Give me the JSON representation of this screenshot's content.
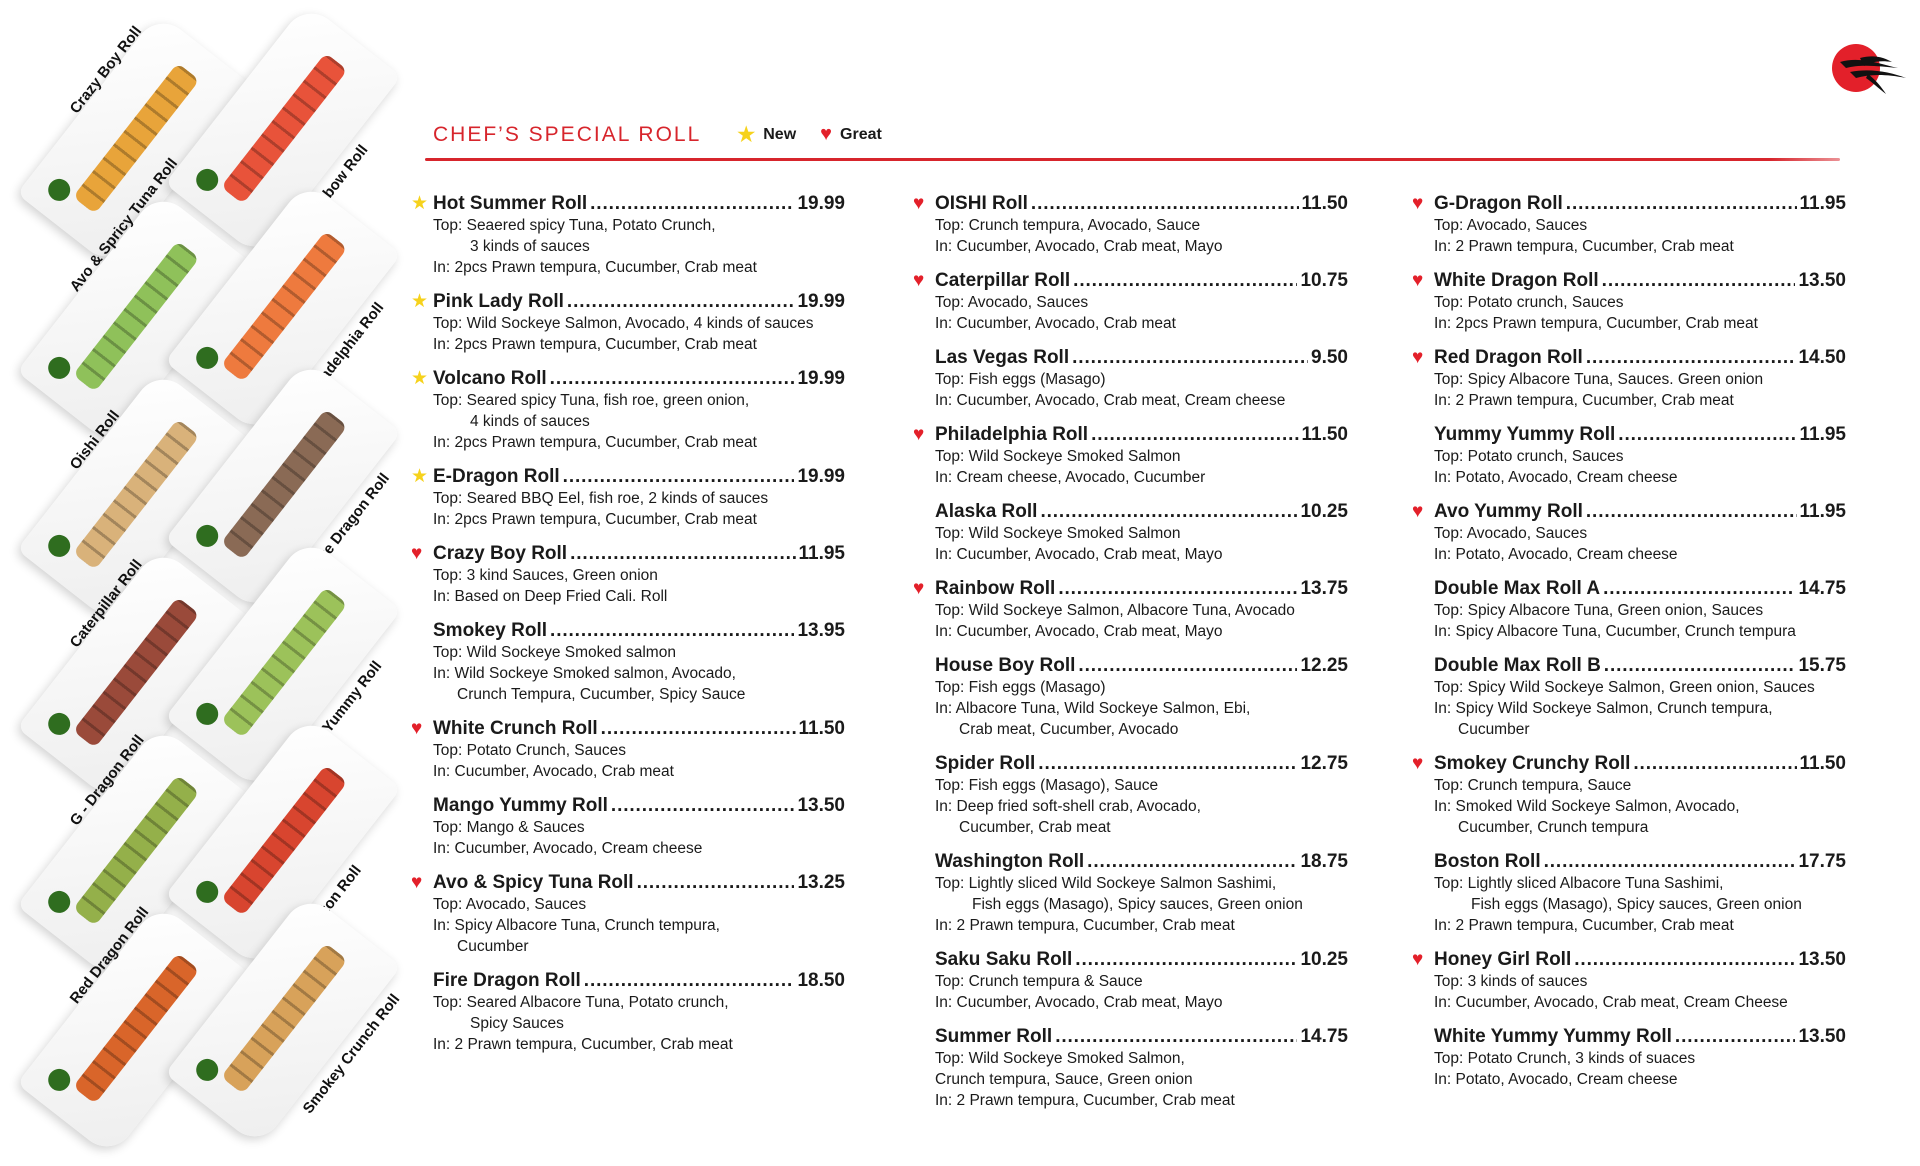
{
  "header": {
    "title": "CHEF’S SPECIAL ROLL",
    "legend": [
      {
        "icon": "star-icon",
        "label": "New"
      },
      {
        "icon": "heart-icon",
        "label": "Great"
      }
    ]
  },
  "colors": {
    "accent": "#d7252c",
    "star": "#f6d21c",
    "heart": "#e3202a"
  },
  "photos": [
    {
      "label": "Crazy Boy Roll",
      "color": "#e8a43a"
    },
    {
      "label": "Rainbow Roll",
      "color": "#e8533a"
    },
    {
      "label": "Avo & Spricy Tuna Roll",
      "color": "#8fc15a"
    },
    {
      "label": "Philadelphia Roll",
      "color": "#ee7a3e"
    },
    {
      "label": "Oishi Roll",
      "color": "#d9b27a"
    },
    {
      "label": "White Dragon Roll",
      "color": "#8a6a55"
    },
    {
      "label": "Caterpillar Roll",
      "color": "#9a4a3a"
    },
    {
      "label": "Avo Yummy Roll",
      "color": "#9cc25a"
    },
    {
      "label": "G - Dragon Roll",
      "color": "#94b04a"
    },
    {
      "label": "Boston Roll",
      "color": "#d8452f"
    },
    {
      "label": "Red Dragon Roll",
      "color": "#d9652a"
    },
    {
      "label": "Smokey Crunch Roll",
      "color": "#d8a25a"
    }
  ],
  "columns": [
    [
      {
        "mark": "star",
        "name": "Hot Summer Roll",
        "price": "19.99",
        "lines": [
          {
            "t": "Top: Seaered spicy Tuna, Potato Crunch,",
            "i": 0
          },
          {
            "t": "3 kinds of sauces",
            "i": 2
          },
          {
            "t": "In: 2pcs Prawn tempura, Cucumber, Crab meat",
            "i": 0
          }
        ]
      },
      {
        "mark": "star",
        "name": "Pink Lady Roll",
        "price": "19.99",
        "lines": [
          {
            "t": "Top: Wild Sockeye Salmon, Avocado, 4 kinds of sauces",
            "i": 0
          },
          {
            "t": "In: 2pcs Prawn tempura, Cucumber, Crab meat",
            "i": 0
          }
        ]
      },
      {
        "mark": "star",
        "name": "Volcano Roll",
        "price": "19.99",
        "lines": [
          {
            "t": "Top: Seared spicy Tuna, fish roe, green onion,",
            "i": 0
          },
          {
            "t": "4 kinds of sauces",
            "i": 2
          },
          {
            "t": "In: 2pcs Prawn tempura, Cucumber, Crab meat",
            "i": 0
          }
        ]
      },
      {
        "mark": "star",
        "name": "E-Dragon Roll",
        "price": "19.99",
        "lines": [
          {
            "t": "Top: Seared BBQ Eel, fish roe, 2 kinds of sauces",
            "i": 0
          },
          {
            "t": "In:  2pcs Prawn tempura, Cucumber, Crab meat",
            "i": 0
          }
        ]
      },
      {
        "mark": "heart",
        "name": "Crazy Boy Roll",
        "price": "11.95",
        "lines": [
          {
            "t": "Top: 3 kind Sauces, Green onion",
            "i": 0
          },
          {
            "t": "In: Based on Deep Fried Cali. Roll",
            "i": 0
          }
        ]
      },
      {
        "mark": "",
        "name": "Smokey Roll",
        "price": "13.95",
        "lines": [
          {
            "t": "Top: Wild Sockeye Smoked salmon",
            "i": 0
          },
          {
            "t": "In: Wild Sockeye Smoked salmon, Avocado,",
            "i": 0
          },
          {
            "t": "Crunch Tempura, Cucumber, Spicy Sauce",
            "i": 1
          }
        ]
      },
      {
        "mark": "heart",
        "name": "White Crunch Roll",
        "price": "11.50",
        "lines": [
          {
            "t": "Top: Potato Crunch, Sauces",
            "i": 0
          },
          {
            "t": "In: Cucumber, Avocado, Crab meat",
            "i": 0
          }
        ]
      },
      {
        "mark": "",
        "name": "Mango Yummy Roll",
        "price": "13.50",
        "lines": [
          {
            "t": "Top: Mango & Sauces",
            "i": 0
          },
          {
            "t": "In: Cucumber, Avocado, Cream cheese",
            "i": 0
          }
        ]
      },
      {
        "mark": "heart",
        "name": "Avo & Spicy Tuna Roll",
        "price": "13.25",
        "lines": [
          {
            "t": "Top: Avocado, Sauces",
            "i": 0
          },
          {
            "t": "In: Spicy Albacore Tuna, Crunch tempura,",
            "i": 0
          },
          {
            "t": "Cucumber",
            "i": 1
          }
        ]
      },
      {
        "mark": "",
        "name": "Fire Dragon Roll",
        "price": "18.50",
        "lines": [
          {
            "t": "Top: Seared Albacore Tuna, Potato crunch,",
            "i": 0
          },
          {
            "t": "Spicy Sauces",
            "i": 2
          },
          {
            "t": "In: 2 Prawn tempura, Cucumber, Crab meat",
            "i": 0
          }
        ]
      }
    ],
    [
      {
        "mark": "heart",
        "name": "OISHI Roll",
        "price": "11.50",
        "lines": [
          {
            "t": "Top: Crunch tempura, Avocado, Sauce",
            "i": 0
          },
          {
            "t": "In: Cucumber, Avocado, Crab meat, Mayo",
            "i": 0
          }
        ]
      },
      {
        "mark": "heart",
        "name": "Caterpillar Roll",
        "price": "10.75",
        "lines": [
          {
            "t": "Top: Avocado, Sauces",
            "i": 0
          },
          {
            "t": "In: Cucumber, Avocado, Crab meat",
            "i": 0
          }
        ]
      },
      {
        "mark": "",
        "name": "Las Vegas Roll",
        "price": "9.50",
        "lines": [
          {
            "t": "Top: Fish eggs (Masago)",
            "i": 0
          },
          {
            "t": "In: Cucumber, Avocado, Crab meat, Cream cheese",
            "i": 0
          }
        ]
      },
      {
        "mark": "heart",
        "name": "Philadelphia Roll",
        "price": "11.50",
        "lines": [
          {
            "t": "Top: Wild Sockeye Smoked Salmon",
            "i": 0
          },
          {
            "t": "In: Cream cheese, Avocado, Cucumber",
            "i": 0
          }
        ]
      },
      {
        "mark": "",
        "name": "Alaska Roll",
        "price": "10.25",
        "lines": [
          {
            "t": "Top: Wild Sockeye Smoked Salmon",
            "i": 0
          },
          {
            "t": "In: Cucumber, Avocado, Crab meat, Mayo",
            "i": 0
          }
        ]
      },
      {
        "mark": "heart",
        "name": "Rainbow Roll",
        "price": "13.75",
        "lines": [
          {
            "t": "Top: Wild Sockeye Salmon, Albacore Tuna, Avocado",
            "i": 0
          },
          {
            "t": "In: Cucumber, Avocado, Crab meat, Mayo",
            "i": 0
          }
        ]
      },
      {
        "mark": "",
        "name": "House Boy Roll",
        "price": "12.25",
        "lines": [
          {
            "t": "Top: Fish eggs (Masago)",
            "i": 0
          },
          {
            "t": "In: Albacore Tuna, Wild Sockeye Salmon, Ebi,",
            "i": 0
          },
          {
            "t": "Crab meat, Cucumber, Avocado",
            "i": 1
          }
        ]
      },
      {
        "mark": "",
        "name": "Spider Roll",
        "price": "12.75",
        "lines": [
          {
            "t": "Top: Fish eggs (Masago), Sauce",
            "i": 0
          },
          {
            "t": "In: Deep fried soft-shell crab, Avocado,",
            "i": 0
          },
          {
            "t": "Cucumber, Crab meat",
            "i": 1
          }
        ]
      },
      {
        "mark": "",
        "name": "Washington Roll",
        "price": "18.75",
        "lines": [
          {
            "t": "Top: Lightly sliced Wild Sockeye Salmon Sashimi,",
            "i": 0
          },
          {
            "t": "Fish eggs (Masago), Spicy sauces, Green onion",
            "i": 2
          },
          {
            "t": "In: 2 Prawn tempura, Cucumber, Crab meat",
            "i": 0
          }
        ]
      },
      {
        "mark": "",
        "name": "Saku Saku Roll",
        "price": "10.25",
        "lines": [
          {
            "t": "Top: Crunch tempura & Sauce",
            "i": 0
          },
          {
            "t": "In: Cucumber, Avocado, Crab meat, Mayo",
            "i": 0
          }
        ]
      },
      {
        "mark": "",
        "name": "Summer Roll",
        "price": "14.75",
        "lines": [
          {
            "t": "Top: Wild Sockeye Smoked Salmon,",
            "i": 0
          },
          {
            "t": "Crunch tempura, Sauce, Green onion",
            "i": 0
          },
          {
            "t": "In: 2 Prawn tempura, Cucumber, Crab meat",
            "i": 0
          }
        ]
      }
    ],
    [
      {
        "mark": "heart",
        "name": "G-Dragon Roll",
        "price": "11.95",
        "lines": [
          {
            "t": "Top: Avocado, Sauces",
            "i": 0
          },
          {
            "t": "In: 2 Prawn tempura, Cucumber, Crab meat",
            "i": 0
          }
        ]
      },
      {
        "mark": "heart",
        "name": "White Dragon Roll",
        "price": "13.50",
        "lines": [
          {
            "t": "Top: Potato crunch, Sauces",
            "i": 0
          },
          {
            "t": "In: 2pcs Prawn tempura, Cucumber, Crab meat",
            "i": 0
          }
        ]
      },
      {
        "mark": "heart",
        "name": "Red Dragon Roll",
        "price": "14.50",
        "lines": [
          {
            "t": "Top: Spicy Albacore Tuna, Sauces. Green onion",
            "i": 0
          },
          {
            "t": "In: 2 Prawn tempura, Cucumber, Crab meat",
            "i": 0
          }
        ]
      },
      {
        "mark": "",
        "name": "Yummy Yummy Roll",
        "price": "11.95",
        "lines": [
          {
            "t": "Top: Potato crunch, Sauces",
            "i": 0
          },
          {
            "t": "In: Potato, Avocado, Cream cheese",
            "i": 0
          }
        ]
      },
      {
        "mark": "heart",
        "name": "Avo Yummy Roll",
        "price": "11.95",
        "lines": [
          {
            "t": "Top: Avocado, Sauces",
            "i": 0
          },
          {
            "t": "In: Potato, Avocado, Cream cheese",
            "i": 0
          }
        ]
      },
      {
        "mark": "",
        "name": "Double Max Roll A",
        "price": "14.75",
        "lines": [
          {
            "t": "Top: Spicy Albacore Tuna, Green onion, Sauces",
            "i": 0
          },
          {
            "t": "In: Spicy Albacore Tuna, Cucumber, Crunch tempura",
            "i": 0
          }
        ]
      },
      {
        "mark": "",
        "name": "Double Max Roll  B",
        "price": "15.75",
        "lines": [
          {
            "t": "Top: Spicy Wild Sockeye Salmon, Green onion, Sauces",
            "i": 0
          },
          {
            "t": "In: Spicy Wild Sockeye Salmon, Crunch tempura,",
            "i": 0
          },
          {
            "t": "Cucumber",
            "i": 1
          }
        ]
      },
      {
        "mark": "heart",
        "name": "Smokey Crunchy Roll",
        "price": "11.50",
        "lines": [
          {
            "t": "Top: Crunch tempura, Sauce",
            "i": 0
          },
          {
            "t": "In: Smoked Wild Sockeye Salmon, Avocado,",
            "i": 0
          },
          {
            "t": "Cucumber, Crunch tempura",
            "i": 1
          }
        ]
      },
      {
        "mark": "",
        "name": "Boston Roll",
        "price": "17.75",
        "lines": [
          {
            "t": "Top: Lightly sliced Albacore Tuna Sashimi,",
            "i": 0
          },
          {
            "t": "Fish eggs (Masago), Spicy sauces, Green onion",
            "i": 2
          },
          {
            "t": "In: 2 Prawn tempura, Cucumber, Crab meat",
            "i": 0
          }
        ]
      },
      {
        "mark": "heart",
        "name": "Honey Girl Roll",
        "price": "13.50",
        "lines": [
          {
            "t": "Top: 3 kinds of sauces",
            "i": 0
          },
          {
            "t": "In: Cucumber, Avocado, Crab meat, Cream Cheese",
            "i": 0
          }
        ]
      },
      {
        "mark": "",
        "name": "White Yummy Yummy  Roll",
        "price": "13.50",
        "lines": [
          {
            "t": "Top: Potato Crunch, 3 kinds of suaces",
            "i": 0
          },
          {
            "t": "In:  Potato, Avocado, Cream cheese",
            "i": 0
          }
        ]
      }
    ]
  ]
}
